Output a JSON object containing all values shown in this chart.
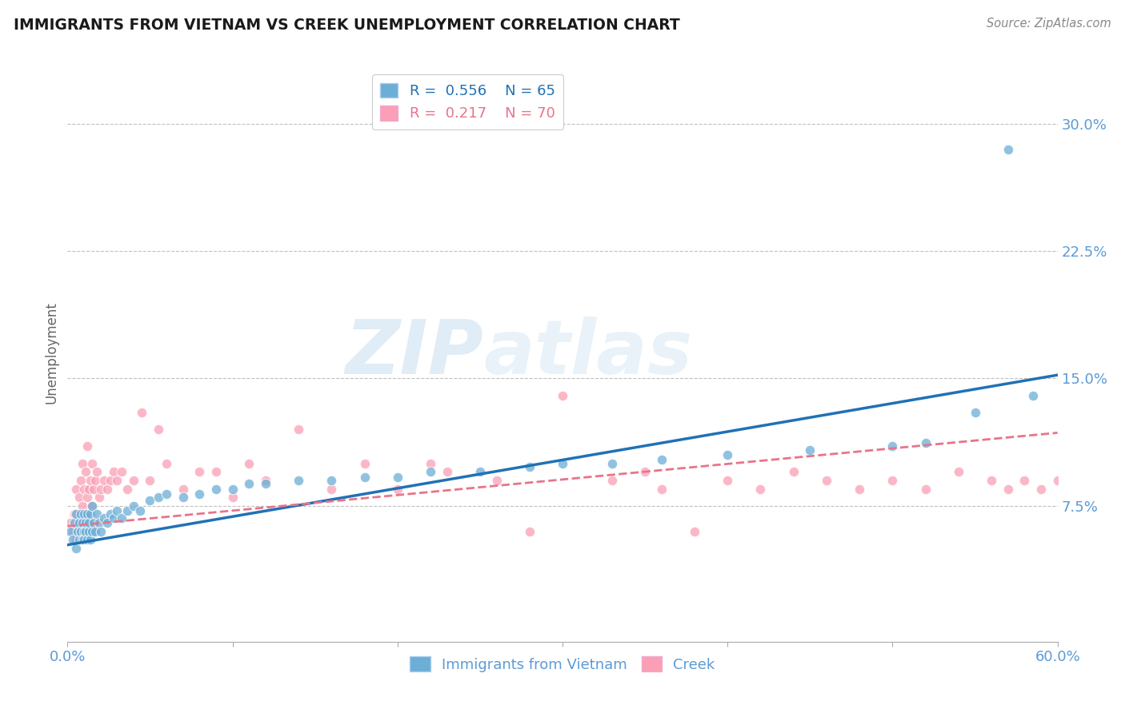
{
  "title": "IMMIGRANTS FROM VIETNAM VS CREEK UNEMPLOYMENT CORRELATION CHART",
  "source_text": "Source: ZipAtlas.com",
  "ylabel": "Unemployment",
  "xlim": [
    0.0,
    0.6
  ],
  "ylim": [
    -0.005,
    0.335
  ],
  "yticks": [
    0.075,
    0.15,
    0.225,
    0.3
  ],
  "ytick_labels": [
    "7.5%",
    "15.0%",
    "22.5%",
    "30.0%"
  ],
  "xticks": [
    0.0,
    0.1,
    0.2,
    0.3,
    0.4,
    0.5,
    0.6
  ],
  "xtick_labels": [
    "0.0%",
    "",
    "",
    "",
    "",
    "",
    "60.0%"
  ],
  "legend_r1": "R =  0.556",
  "legend_n1": "N = 65",
  "legend_r2": "R =  0.217",
  "legend_n2": "N = 70",
  "color_vietnam": "#6baed6",
  "color_creek": "#fa9fb5",
  "color_vietnam_line": "#2171b5",
  "color_creek_line": "#e8748a",
  "watermark_zip": "ZIP",
  "watermark_atlas": "atlas",
  "background_color": "#ffffff",
  "vietnam_scatter_x": [
    0.002,
    0.003,
    0.004,
    0.005,
    0.005,
    0.006,
    0.007,
    0.007,
    0.008,
    0.008,
    0.009,
    0.009,
    0.01,
    0.01,
    0.01,
    0.011,
    0.011,
    0.012,
    0.012,
    0.013,
    0.013,
    0.014,
    0.014,
    0.015,
    0.015,
    0.016,
    0.017,
    0.018,
    0.019,
    0.02,
    0.022,
    0.024,
    0.026,
    0.028,
    0.03,
    0.033,
    0.036,
    0.04,
    0.044,
    0.05,
    0.055,
    0.06,
    0.07,
    0.08,
    0.09,
    0.1,
    0.11,
    0.12,
    0.14,
    0.16,
    0.18,
    0.2,
    0.22,
    0.25,
    0.28,
    0.3,
    0.33,
    0.36,
    0.4,
    0.45,
    0.5,
    0.52,
    0.55,
    0.57,
    0.585
  ],
  "vietnam_scatter_y": [
    0.06,
    0.055,
    0.065,
    0.05,
    0.07,
    0.06,
    0.055,
    0.065,
    0.06,
    0.07,
    0.055,
    0.065,
    0.06,
    0.055,
    0.07,
    0.06,
    0.065,
    0.055,
    0.07,
    0.06,
    0.065,
    0.055,
    0.07,
    0.06,
    0.075,
    0.065,
    0.06,
    0.07,
    0.065,
    0.06,
    0.068,
    0.065,
    0.07,
    0.068,
    0.072,
    0.068,
    0.072,
    0.075,
    0.072,
    0.078,
    0.08,
    0.082,
    0.08,
    0.082,
    0.085,
    0.085,
    0.088,
    0.088,
    0.09,
    0.09,
    0.092,
    0.092,
    0.095,
    0.095,
    0.098,
    0.1,
    0.1,
    0.102,
    0.105,
    0.108,
    0.11,
    0.112,
    0.13,
    0.285,
    0.14
  ],
  "creek_scatter_x": [
    0.002,
    0.003,
    0.004,
    0.005,
    0.005,
    0.006,
    0.007,
    0.008,
    0.008,
    0.009,
    0.009,
    0.01,
    0.01,
    0.011,
    0.011,
    0.012,
    0.012,
    0.013,
    0.014,
    0.015,
    0.015,
    0.016,
    0.017,
    0.018,
    0.019,
    0.02,
    0.022,
    0.024,
    0.026,
    0.028,
    0.03,
    0.033,
    0.036,
    0.04,
    0.045,
    0.05,
    0.055,
    0.06,
    0.07,
    0.08,
    0.09,
    0.1,
    0.11,
    0.12,
    0.14,
    0.16,
    0.18,
    0.2,
    0.23,
    0.26,
    0.3,
    0.33,
    0.36,
    0.38,
    0.4,
    0.42,
    0.44,
    0.46,
    0.48,
    0.5,
    0.52,
    0.54,
    0.56,
    0.57,
    0.58,
    0.59,
    0.6,
    0.35,
    0.28,
    0.22
  ],
  "creek_scatter_y": [
    0.065,
    0.06,
    0.07,
    0.055,
    0.085,
    0.065,
    0.08,
    0.06,
    0.09,
    0.075,
    0.1,
    0.065,
    0.085,
    0.07,
    0.095,
    0.08,
    0.11,
    0.085,
    0.09,
    0.075,
    0.1,
    0.085,
    0.09,
    0.095,
    0.08,
    0.085,
    0.09,
    0.085,
    0.09,
    0.095,
    0.09,
    0.095,
    0.085,
    0.09,
    0.13,
    0.09,
    0.12,
    0.1,
    0.085,
    0.095,
    0.095,
    0.08,
    0.1,
    0.09,
    0.12,
    0.085,
    0.1,
    0.085,
    0.095,
    0.09,
    0.14,
    0.09,
    0.085,
    0.06,
    0.09,
    0.085,
    0.095,
    0.09,
    0.085,
    0.09,
    0.085,
    0.095,
    0.09,
    0.085,
    0.09,
    0.085,
    0.09,
    0.095,
    0.06,
    0.1
  ]
}
